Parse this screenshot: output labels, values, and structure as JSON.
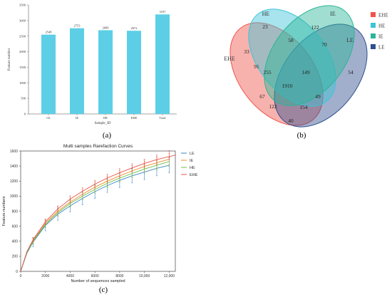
{
  "panels": {
    "a": {
      "label": "(a)"
    },
    "b": {
      "label": "(b)"
    },
    "c": {
      "label": "(c)"
    }
  },
  "chart_data": [
    {
      "type": "bar",
      "panel": "a",
      "categories": [
        "LE",
        "IE",
        "HE",
        "EHE",
        "Total"
      ],
      "values": [
        2548,
        2753,
        2689,
        2672,
        3197
      ],
      "value_labels": [
        "2548",
        "2753",
        "2689",
        "2672",
        "3197"
      ],
      "xlabel": "Sample_ID",
      "ylabel": "Feature number",
      "ylim": [
        0,
        3500
      ],
      "yticks": [
        0,
        500,
        1000,
        1500,
        2000,
        2500,
        3000,
        3500
      ],
      "color": "#5ccfe6",
      "grid": false
    },
    {
      "type": "venn",
      "panel": "b",
      "sets": [
        {
          "name": "EHE",
          "color": "#f0544a"
        },
        {
          "name": "HE",
          "color": "#3cc4d8"
        },
        {
          "name": "IE",
          "color": "#2bb597"
        },
        {
          "name": "LE",
          "color": "#2e4e8f"
        }
      ],
      "regions": [
        {
          "sets": [
            "HE"
          ],
          "count": 23
        },
        {
          "sets": [
            "IE"
          ],
          "count": 122
        },
        {
          "sets": [
            "EHE"
          ],
          "count": 33
        },
        {
          "sets": [
            "LE"
          ],
          "count": 54
        },
        {
          "sets": [
            "HE",
            "IE"
          ],
          "count": 58
        },
        {
          "sets": [
            "EHE",
            "HE"
          ],
          "count": 91
        },
        {
          "sets": [
            "IE",
            "LE"
          ],
          "count": 70
        },
        {
          "sets": [
            "EHE",
            "HE",
            "IE"
          ],
          "count": 255
        },
        {
          "sets": [
            "HE",
            "IE",
            "LE"
          ],
          "count": 149
        },
        {
          "sets": [
            "EHE",
            "HE",
            "IE",
            "LE"
          ],
          "count": 1910
        },
        {
          "sets": [
            "EHE",
            "IE"
          ],
          "count": 67
        },
        {
          "sets": [
            "HE",
            "LE"
          ],
          "count": 49
        },
        {
          "sets": [
            "EHE",
            "IE",
            "LE"
          ],
          "count": 122
        },
        {
          "sets": [
            "EHE",
            "HE",
            "LE"
          ],
          "count": 154
        },
        {
          "sets": [
            "EHE",
            "LE"
          ],
          "count": 40
        }
      ],
      "legend_position": "right"
    },
    {
      "type": "line",
      "panel": "c",
      "title": "Multi samples Rarefaction Curves",
      "xlabel": "Number of sequences sampled",
      "ylabel": "Feature numbers",
      "xlim": [
        0,
        12500
      ],
      "ylim": [
        0,
        1600
      ],
      "xticks": [
        0,
        2000,
        4000,
        6000,
        8000,
        10000,
        12000
      ],
      "xtick_labels": [
        "0",
        "2000",
        "4000",
        "6000",
        "8000",
        "10,000",
        "12,000"
      ],
      "yticks": [
        0,
        200,
        400,
        600,
        800,
        1000,
        1200,
        1400,
        1600
      ],
      "legend_position": "right",
      "x": [
        0,
        500,
        1000,
        2000,
        3000,
        4000,
        5000,
        6000,
        7000,
        8000,
        9000,
        10000,
        11000,
        12000
      ],
      "error_x": [
        1000,
        2000,
        3000,
        4000,
        5000,
        6000,
        7000,
        8000,
        9000,
        10000,
        11000,
        12000
      ],
      "series": [
        {
          "name": "LE",
          "color": "#3a86c8",
          "end_x": 12000,
          "values": [
            0,
            240,
            390,
            610,
            760,
            870,
            970,
            1060,
            1140,
            1210,
            1270,
            1320,
            1370,
            1410
          ],
          "error": [
            60,
            70,
            80,
            80,
            85,
            90,
            90,
            95,
            95,
            100,
            100,
            100
          ]
        },
        {
          "name": "IE",
          "color": "#f08a2e",
          "end_x": 12000,
          "values": [
            0,
            255,
            410,
            640,
            800,
            920,
            1025,
            1120,
            1200,
            1270,
            1335,
            1395,
            1445,
            1490
          ],
          "error": [
            40,
            50,
            55,
            60,
            60,
            65,
            65,
            70,
            70,
            70,
            75,
            75
          ]
        },
        {
          "name": "HE",
          "color": "#6cbf4a",
          "end_x": 12000,
          "values": [
            0,
            250,
            400,
            625,
            780,
            900,
            1000,
            1090,
            1170,
            1240,
            1300,
            1360,
            1410,
            1460
          ],
          "error": [
            35,
            40,
            45,
            45,
            50,
            50,
            55,
            55,
            55,
            60,
            60,
            60
          ]
        },
        {
          "name": "EHE",
          "color": "#e8534a",
          "end_x": 12500,
          "values": [
            0,
            262,
            420,
            660,
            830,
            960,
            1065,
            1160,
            1240,
            1310,
            1375,
            1435,
            1485,
            1545
          ],
          "error": [
            30,
            35,
            40,
            45,
            45,
            50,
            50,
            55,
            55,
            55,
            60,
            60
          ]
        }
      ]
    }
  ]
}
